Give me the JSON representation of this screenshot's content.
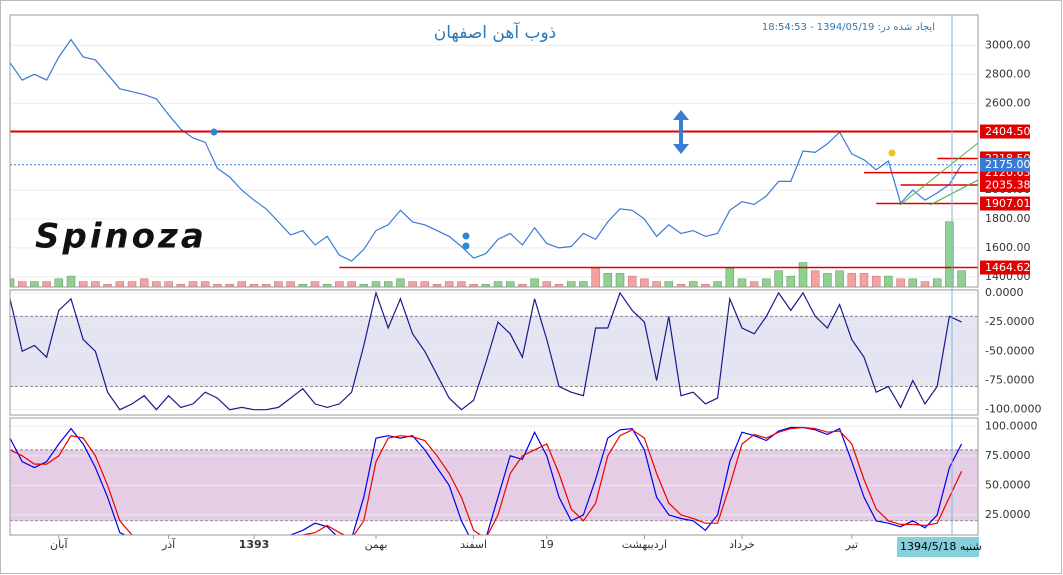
{
  "header": {
    "created": "ایجاد شده در: 1394/05/19 - 18:54:53"
  },
  "chart_data": [
    {
      "type": "line",
      "title": "ذوب آهن اصفهان",
      "watermark": "Spinoza",
      "ylim": [
        1330,
        3210
      ],
      "yticks": [
        {
          "value": 1400,
          "label": "1400.00"
        },
        {
          "value": 1600,
          "label": "1600.00"
        },
        {
          "value": 1800,
          "label": "1800.00"
        },
        {
          "value": 2000,
          "label": "2000.00"
        },
        {
          "value": 2200,
          "label": "2200.00"
        },
        {
          "value": 2400,
          "label": "2400.00"
        },
        {
          "value": 2600,
          "label": "2600.00"
        },
        {
          "value": 2800,
          "label": "2800.00"
        },
        {
          "value": 3000,
          "label": "3000.00"
        }
      ],
      "series": [
        {
          "name": "Close",
          "color": "#3a7bd5",
          "values": [
            2880,
            2760,
            2800,
            2760,
            2920,
            3040,
            2920,
            2900,
            2800,
            2700,
            2680,
            2660,
            2630,
            2520,
            2420,
            2360,
            2330,
            2150,
            2090,
            2000,
            1930,
            1870,
            1780,
            1690,
            1720,
            1620,
            1680,
            1550,
            1510,
            1590,
            1720,
            1760,
            1860,
            1780,
            1760,
            1720,
            1680,
            1610,
            1530,
            1560,
            1660,
            1700,
            1620,
            1740,
            1630,
            1600,
            1610,
            1700,
            1660,
            1780,
            1870,
            1860,
            1800,
            1680,
            1760,
            1700,
            1720,
            1680,
            1700,
            1860,
            1920,
            1900,
            1960,
            2060,
            2060,
            2270,
            2260,
            2320,
            2400,
            2250,
            2210,
            2140,
            2200,
            1910,
            2000,
            1930,
            1980,
            2040,
            2175
          ]
        }
      ],
      "volume": {
        "ylim": [
          0,
          100
        ],
        "up_color": "#90d090",
        "down_color": "#f2a0a0",
        "values": [
          3,
          2,
          2,
          2,
          3,
          4,
          2,
          2,
          1,
          2,
          2,
          3,
          2,
          2,
          1,
          2,
          2,
          1,
          1,
          2,
          1,
          1,
          2,
          2,
          1,
          2,
          1,
          2,
          2,
          1,
          2,
          2,
          3,
          2,
          2,
          1,
          2,
          2,
          1,
          1,
          2,
          2,
          1,
          3,
          2,
          1,
          2,
          2,
          7,
          5,
          5,
          4,
          3,
          2,
          2,
          1,
          2,
          1,
          2,
          7,
          3,
          2,
          3,
          6,
          4,
          9,
          6,
          5,
          6,
          5,
          5,
          4,
          4,
          3,
          3,
          2,
          3,
          24,
          6
        ]
      },
      "levels": [
        {
          "value": 2218.5,
          "label": "2218.50",
          "color": "#e00000",
          "start": 76
        },
        {
          "value": 2120.63,
          "label": "2120.63",
          "color": "#e00000",
          "start": 70
        },
        {
          "value": 2404.5,
          "label": "2404.50",
          "color": "#e00000",
          "start": 0
        },
        {
          "value": 2175,
          "label": "2175.00",
          "color": "#3a7bd5",
          "start": 0
        },
        {
          "value": 2035.38,
          "label": "2035.38",
          "color": "#e00000",
          "start": 73
        },
        {
          "value": 1907.01,
          "label": "1907.01",
          "color": "#e00000",
          "start": 71
        },
        {
          "value": 1464.62,
          "label": "1464.62",
          "color": "#e00000",
          "start": 27
        }
      ]
    },
    {
      "type": "line",
      "ylim": [
        -104.5,
        2.5
      ],
      "band": [
        -80,
        -20
      ],
      "band_color": "#e4e4f3",
      "yticks": [
        {
          "value": -100,
          "label": "-100.0000"
        },
        {
          "value": -75,
          "label": "-75.0000"
        },
        {
          "value": -50,
          "label": "-50.0000"
        },
        {
          "value": -25,
          "label": "-25.0000"
        },
        {
          "value": 0,
          "label": "0.0000"
        }
      ],
      "series": [
        {
          "name": "%R",
          "color": "#1a1a8c",
          "values": [
            -5,
            -50,
            -45,
            -55,
            -15,
            -5,
            -40,
            -50,
            -85,
            -100,
            -95,
            -88,
            -100,
            -88,
            -98,
            -95,
            -85,
            -90,
            -100,
            -98,
            -100,
            -100,
            -98,
            -90,
            -82,
            -95,
            -98,
            -95,
            -85,
            -45,
            0,
            -30,
            -5,
            -35,
            -50,
            -70,
            -90,
            -100,
            -92,
            -60,
            -25,
            -35,
            -55,
            -5,
            -40,
            -80,
            -85,
            -88,
            -30,
            -30,
            0,
            -15,
            -25,
            -75,
            -20,
            -88,
            -85,
            -95,
            -90,
            -5,
            -30,
            -35,
            -20,
            0,
            -15,
            0,
            -20,
            -30,
            -10,
            -40,
            -55,
            -85,
            -80,
            -98,
            -75,
            -95,
            -80,
            -20,
            -25
          ]
        }
      ]
    },
    {
      "type": "line",
      "ylim": [
        8,
        107
      ],
      "band": [
        20,
        80
      ],
      "band_color": "#e6cde6",
      "yticks": [
        {
          "value": 25,
          "label": "25.0000"
        },
        {
          "value": 50,
          "label": "50.0000"
        },
        {
          "value": 75,
          "label": "75.0000"
        },
        {
          "value": 100,
          "label": "100.0000"
        }
      ],
      "cursor_label": "1394/5/18 شنبه",
      "categories": [
        null,
        null,
        null,
        null,
        "آبان",
        null,
        null,
        null,
        null,
        null,
        null,
        null,
        null,
        "آذر",
        null,
        null,
        null,
        null,
        null,
        null,
        "1393",
        null,
        null,
        null,
        null,
        null,
        null,
        null,
        null,
        null,
        "بهمن",
        null,
        null,
        null,
        null,
        null,
        null,
        null,
        "اسفند",
        null,
        null,
        null,
        null,
        null,
        "19",
        null,
        null,
        null,
        null,
        null,
        null,
        null,
        "اردیبهشت",
        null,
        null,
        null,
        null,
        null,
        null,
        null,
        "خرداد",
        null,
        null,
        null,
        null,
        null,
        null,
        null,
        null,
        "تیر",
        null,
        null,
        null,
        null,
        null,
        null,
        null,
        null,
        null
      ],
      "series": [
        {
          "name": "%K",
          "color": "#0000ee",
          "values": [
            90,
            70,
            65,
            70,
            85,
            98,
            85,
            65,
            40,
            10,
            5,
            2,
            0,
            3,
            5,
            2,
            0,
            4,
            6,
            3,
            0,
            2,
            5,
            8,
            12,
            18,
            15,
            5,
            5,
            40,
            90,
            92,
            90,
            92,
            80,
            65,
            50,
            20,
            0,
            5,
            40,
            75,
            72,
            95,
            75,
            40,
            20,
            25,
            55,
            90,
            97,
            98,
            80,
            40,
            25,
            22,
            20,
            12,
            25,
            70,
            95,
            92,
            88,
            96,
            99,
            99,
            97,
            93,
            98,
            70,
            40,
            20,
            18,
            15,
            20,
            14,
            25,
            65,
            85
          ]
        },
        {
          "name": "%D",
          "color": "#ee0000",
          "values": [
            80,
            75,
            68,
            68,
            75,
            92,
            90,
            75,
            50,
            20,
            8,
            4,
            2,
            2,
            3,
            3,
            2,
            2,
            3,
            4,
            3,
            2,
            2,
            5,
            8,
            10,
            16,
            10,
            5,
            20,
            70,
            90,
            92,
            91,
            88,
            75,
            60,
            40,
            12,
            5,
            25,
            60,
            75,
            80,
            85,
            60,
            30,
            20,
            35,
            75,
            92,
            97,
            90,
            60,
            35,
            25,
            22,
            18,
            18,
            50,
            85,
            93,
            90,
            95,
            98,
            99,
            98,
            95,
            96,
            85,
            55,
            30,
            20,
            17,
            17,
            16,
            18,
            40,
            62
          ]
        }
      ]
    }
  ]
}
